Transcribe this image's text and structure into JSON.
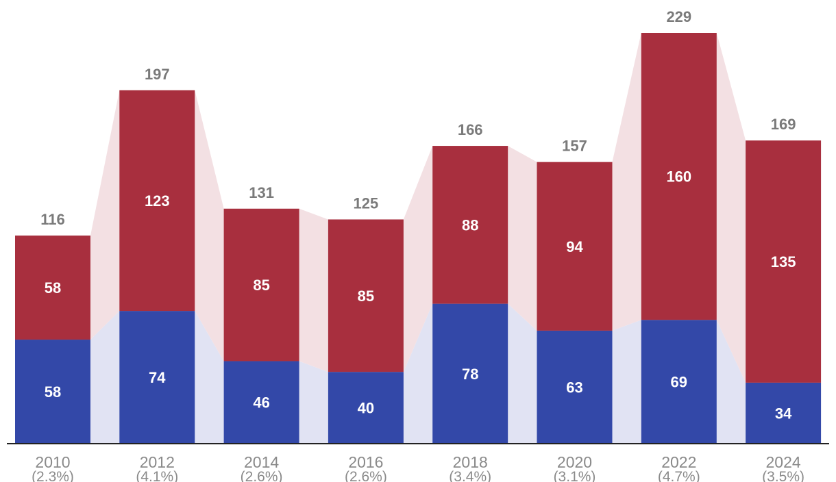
{
  "chart_data": {
    "type": "bar",
    "stacked": true,
    "categories": [
      "2010",
      "2012",
      "2014",
      "2016",
      "2018",
      "2020",
      "2022",
      "2024"
    ],
    "category_sublabels": [
      "(2.3%)",
      "(4.1%)",
      "(2.6%)",
      "(2.6%)",
      "(3.4%)",
      "(3.1%)",
      "(4.7%)",
      "(3.5%)"
    ],
    "series": [
      {
        "values": [
          58,
          74,
          46,
          40,
          78,
          63,
          69,
          34
        ],
        "color": "#3348a8"
      },
      {
        "values": [
          58,
          123,
          85,
          85,
          88,
          94,
          160,
          135
        ],
        "color": "#a82f3e"
      }
    ],
    "totals": [
      116,
      197,
      131,
      125,
      166,
      157,
      229,
      169
    ],
    "connector_colors": [
      "#e1e3f3",
      "#f3e0e3"
    ],
    "title": "",
    "xlabel": "",
    "ylabel": "",
    "ylim": [
      0,
      229
    ],
    "grid": false,
    "legend": "none"
  }
}
